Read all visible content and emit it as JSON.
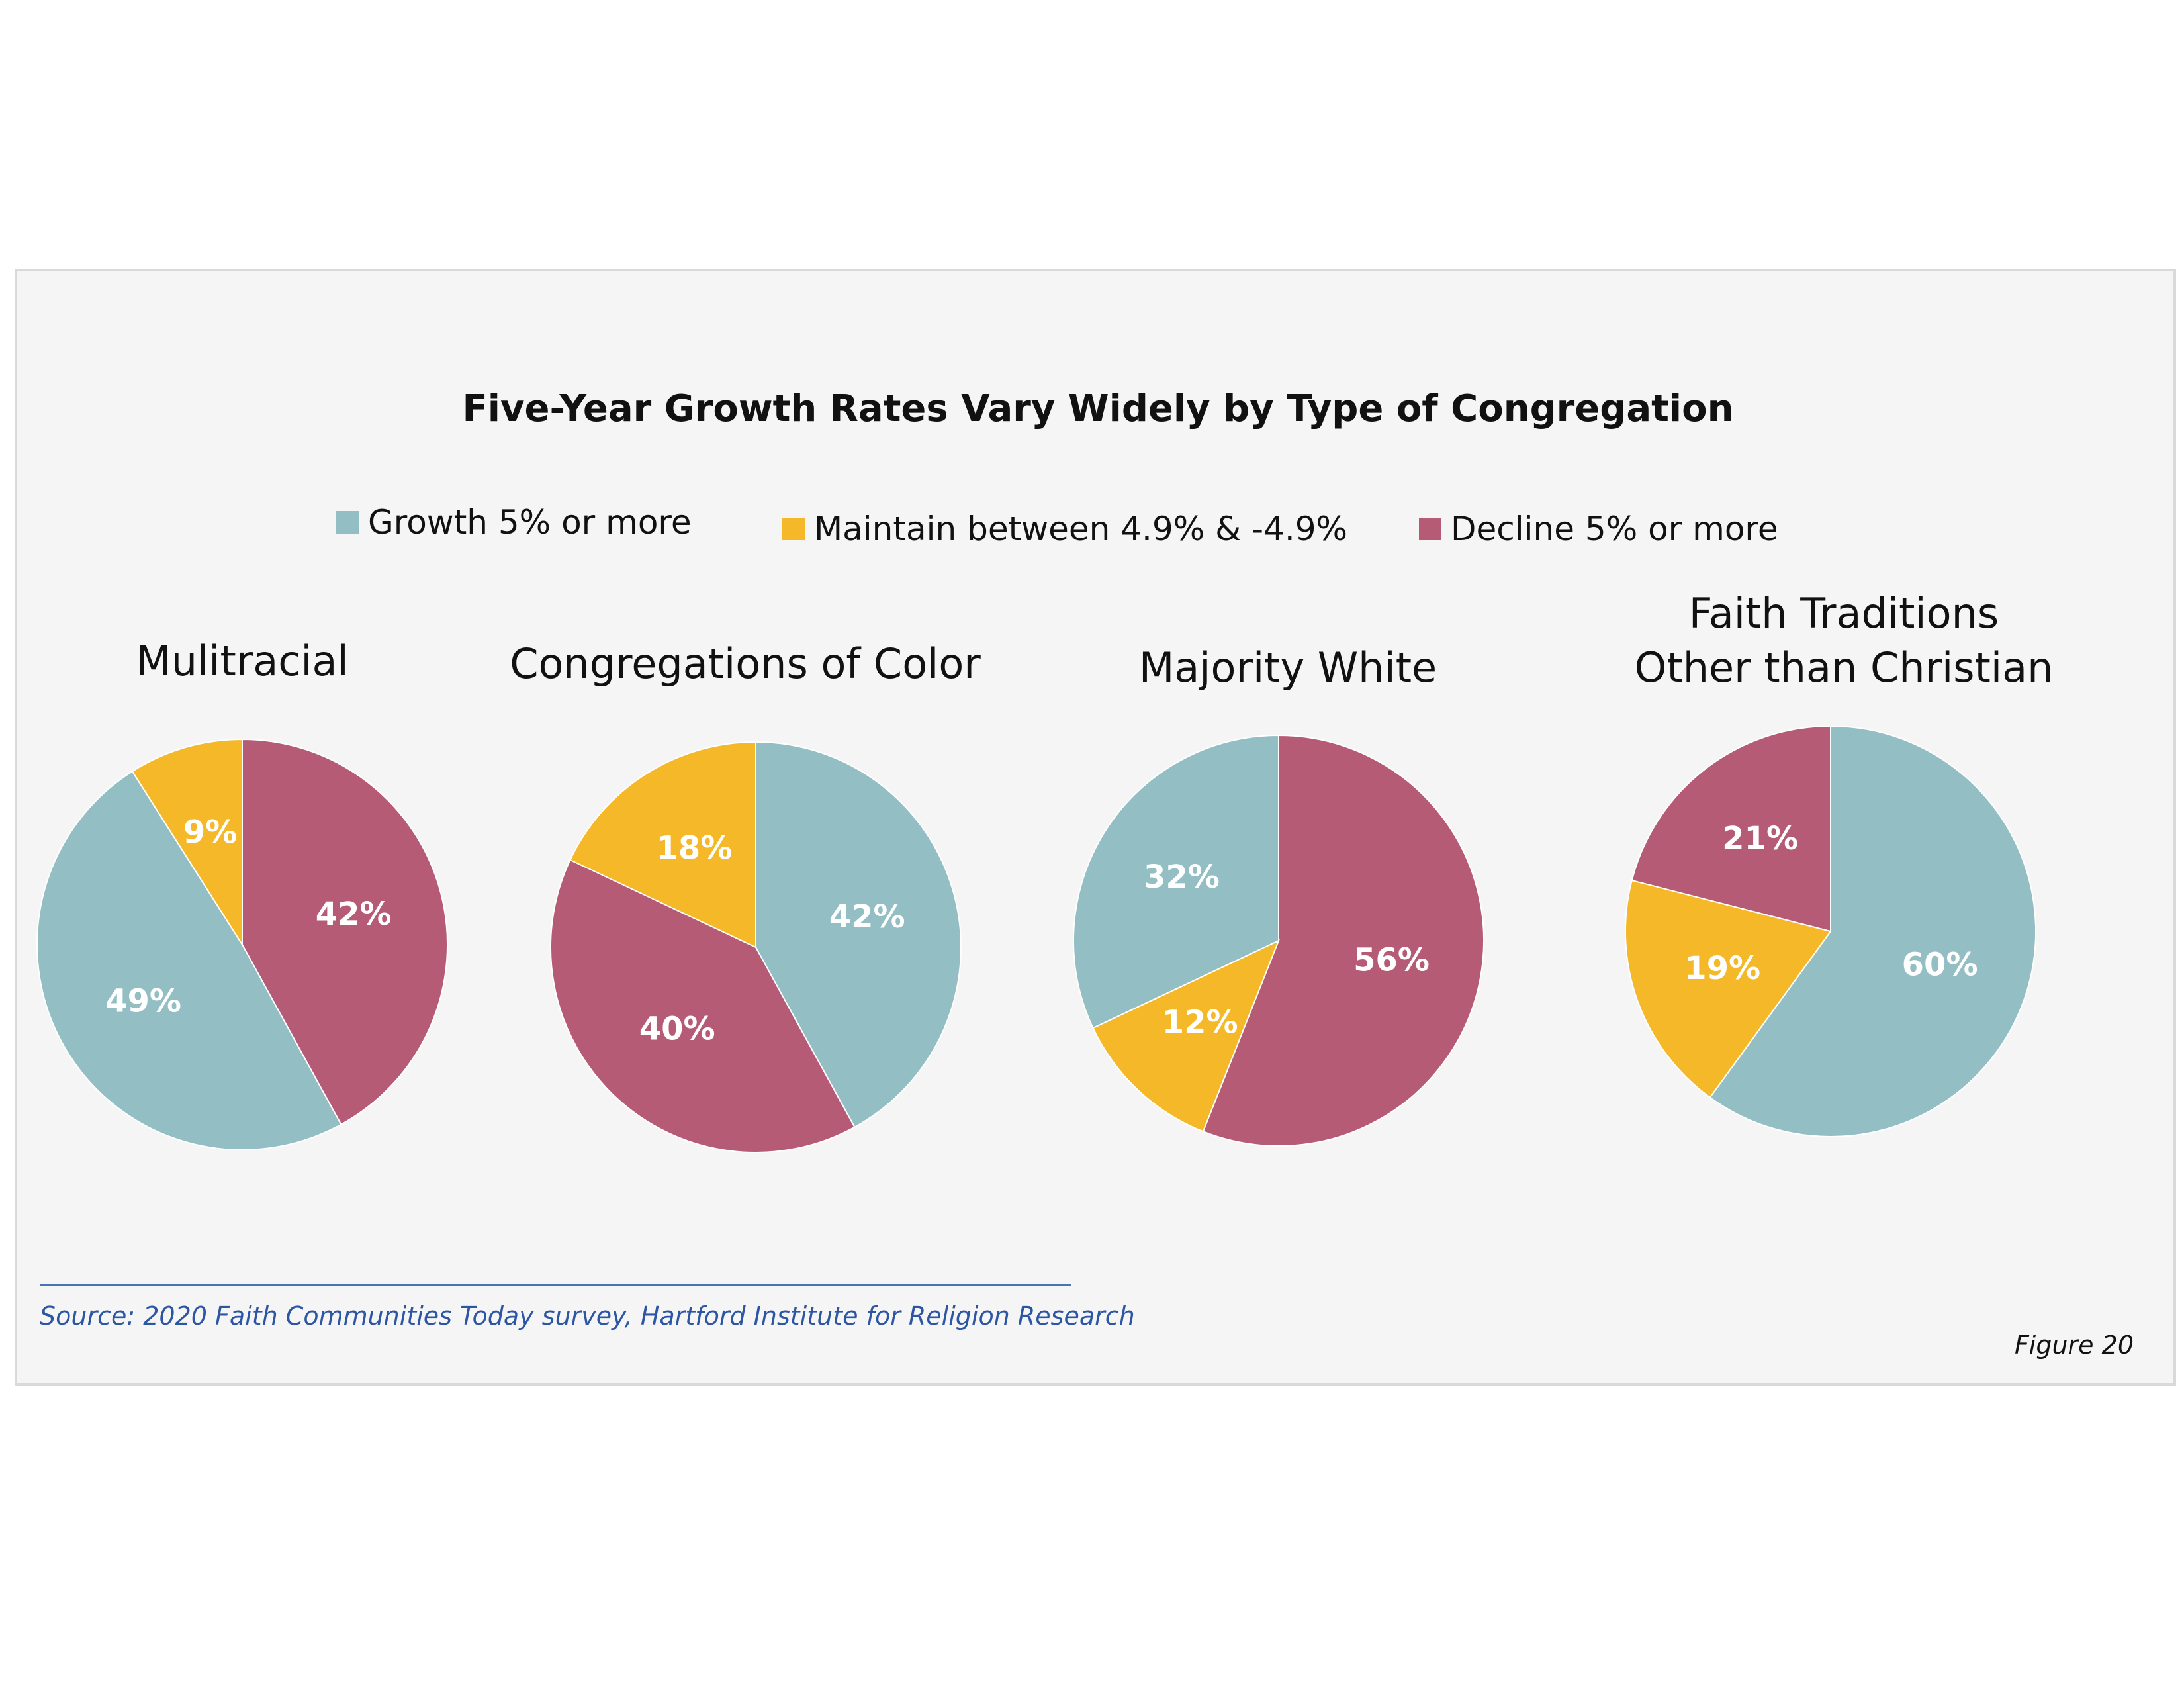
{
  "title": "Five-Year Growth Rates Vary Widely by Type of Congregation",
  "legend": [
    {
      "label": "Growth 5% or more",
      "color": "#92bec4"
    },
    {
      "label": "Maintain between 4.9% & -4.9%",
      "color": "#f4b829"
    },
    {
      "label": "Decline 5% or more",
      "color": "#b55b75"
    }
  ],
  "chart_data": [
    {
      "type": "pie",
      "title": "Mulitracial",
      "slices": [
        {
          "name": "Growth 5% or more",
          "value": 49,
          "label": "49%"
        },
        {
          "name": "Maintain between 4.9% & -4.9%",
          "value": 9,
          "label": "9%"
        },
        {
          "name": "Decline 5% or more",
          "value": 42,
          "label": "42%"
        }
      ]
    },
    {
      "type": "pie",
      "title": "Congregations of Color",
      "slices": [
        {
          "name": "Growth 5% or more",
          "value": 42,
          "label": "42%"
        },
        {
          "name": "Maintain between 4.9% & -4.9%",
          "value": 18,
          "label": "18%"
        },
        {
          "name": "Decline 5% or more",
          "value": 40,
          "label": "40%"
        }
      ]
    },
    {
      "type": "pie",
      "title": "Majority White",
      "slices": [
        {
          "name": "Growth 5% or more",
          "value": 32,
          "label": "32%"
        },
        {
          "name": "Maintain between 4.9% & -4.9%",
          "value": 12,
          "label": "12%"
        },
        {
          "name": "Decline 5% or more",
          "value": 56,
          "label": "56%"
        }
      ]
    },
    {
      "type": "pie",
      "title": "Faith Traditions\nOther than Christian",
      "slices": [
        {
          "name": "Growth 5% or more",
          "value": 60,
          "label": "60%"
        },
        {
          "name": "Maintain between 4.9% & -4.9%",
          "value": 19,
          "label": "19%"
        },
        {
          "name": "Decline 5% or more",
          "value": 21,
          "label": "21%"
        }
      ]
    }
  ],
  "source": "Source: 2020 Faith Communities Today survey, Hartford Institute for Religion Research",
  "figure_label": "Figure 20"
}
